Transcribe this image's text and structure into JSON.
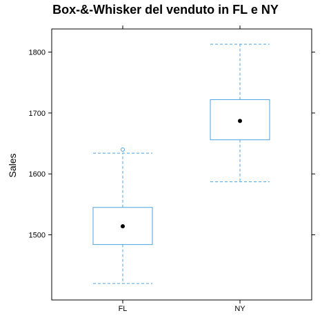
{
  "chart_data": {
    "type": "boxplot",
    "title": "Box-&-Whisker del venduto in FL e NY",
    "xlabel": "",
    "ylabel": "Sales",
    "categories": [
      "FL",
      "NY"
    ],
    "yticks": [
      1500,
      1600,
      1700,
      1800
    ],
    "ylim": [
      1393,
      1838
    ],
    "boxes": [
      {
        "category": "FL",
        "whisker_low": 1420,
        "q1": 1484,
        "median": 1514,
        "q3": 1545,
        "whisker_high": 1634,
        "outliers": [
          1640
        ]
      },
      {
        "category": "NY",
        "whisker_low": 1587,
        "q1": 1656,
        "median": 1687,
        "q3": 1722,
        "whisker_high": 1813,
        "outliers": []
      }
    ],
    "grid": false,
    "colors": {
      "box": "#4aa3df",
      "median": "#000000",
      "frame": "#000000"
    }
  }
}
